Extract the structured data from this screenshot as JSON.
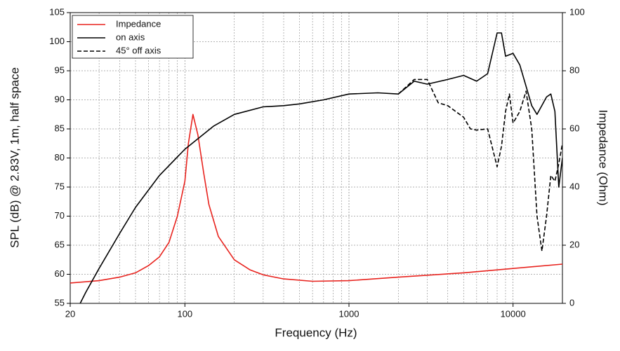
{
  "chart_data": {
    "type": "line",
    "xlabel": "Frequency (Hz)",
    "ylabel": "SPL (dB) @ 2.83V, 1m, half space",
    "y2label": "Impedance (Ohm)",
    "xscale": "log",
    "grid": true,
    "legend": "upper left",
    "xlim": [
      20,
      20000
    ],
    "xticks": [
      20,
      100,
      1000,
      10000
    ],
    "ylim": [
      55,
      105
    ],
    "yticks": [
      55,
      60,
      65,
      70,
      75,
      80,
      85,
      90,
      95,
      100,
      105
    ],
    "y2lim": [
      0,
      100
    ],
    "y2ticks": [
      0,
      20,
      40,
      60,
      80,
      100
    ],
    "series": [
      {
        "name": "Impedance",
        "color": "#e8231e",
        "linestyle": "solid",
        "axis": "y2",
        "x": [
          20,
          30,
          40,
          50,
          60,
          70,
          80,
          90,
          100,
          105,
          112,
          120,
          130,
          140,
          160,
          200,
          250,
          300,
          400,
          600,
          1000,
          2000,
          5000,
          10000,
          20000
        ],
        "values": [
          7,
          7.8,
          9,
          10.5,
          13,
          16,
          21,
          30,
          42,
          55,
          65,
          58,
          45,
          34,
          23,
          15,
          11.5,
          9.8,
          8.4,
          7.6,
          7.8,
          9,
          10.5,
          12,
          13.5
        ]
      },
      {
        "name": "on axis",
        "color": "#000000",
        "linestyle": "solid",
        "axis": "y",
        "x": [
          23,
          25,
          30,
          40,
          50,
          70,
          100,
          150,
          200,
          300,
          400,
          500,
          700,
          1000,
          1500,
          2000,
          2500,
          3000,
          4000,
          5000,
          6000,
          7000,
          8000,
          8500,
          9000,
          10000,
          11000,
          13000,
          14000,
          16000,
          17000,
          18000,
          19000,
          20000
        ],
        "values": [
          55,
          57,
          61,
          67,
          71.5,
          77,
          81.5,
          85.5,
          87.5,
          88.8,
          89,
          89.3,
          90,
          91,
          91.2,
          91,
          93.2,
          92.7,
          93.5,
          94.2,
          93.2,
          94.5,
          101.5,
          101.5,
          97.5,
          98,
          96,
          89,
          87.5,
          90.5,
          91,
          88,
          75,
          80
        ]
      },
      {
        "name": "45° off axis",
        "color": "#000000",
        "linestyle": "dashed",
        "axis": "y",
        "x": [
          2000,
          2500,
          3000,
          3500,
          4000,
          5000,
          5500,
          6000,
          7000,
          8000,
          8500,
          9000,
          9500,
          10000,
          11000,
          12000,
          13000,
          14000,
          15000,
          16000,
          17000,
          18000,
          19000,
          20000
        ],
        "values": [
          91,
          93.5,
          93.5,
          89.5,
          89,
          87,
          85,
          84.8,
          85,
          78.5,
          82,
          88,
          91,
          86,
          88,
          91.5,
          85,
          70,
          64,
          70,
          77,
          76,
          79,
          82.5
        ]
      }
    ]
  }
}
